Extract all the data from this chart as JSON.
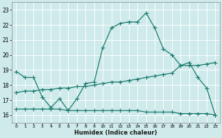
{
  "xlabel": "Humidex (Indice chaleur)",
  "background_color": "#ceeaea",
  "grid_color": "#ffffff",
  "line_color": "#1a7a6e",
  "xlim": [
    -0.5,
    23.5
  ],
  "ylim": [
    15.5,
    23.5
  ],
  "yticks": [
    16,
    17,
    18,
    19,
    20,
    21,
    22,
    23
  ],
  "xticks": [
    0,
    1,
    2,
    3,
    4,
    5,
    6,
    7,
    8,
    9,
    10,
    11,
    12,
    13,
    14,
    15,
    16,
    17,
    18,
    19,
    20,
    21,
    22,
    23
  ],
  "curve1_x": [
    0,
    1,
    2,
    3,
    4,
    5,
    6,
    7,
    8,
    9,
    10,
    11,
    12,
    13,
    14,
    15,
    16,
    17,
    18,
    19,
    20,
    21,
    22,
    23
  ],
  "curve1_y": [
    18.9,
    18.5,
    18.5,
    17.2,
    16.5,
    17.1,
    16.3,
    17.1,
    18.1,
    18.2,
    20.5,
    21.8,
    22.1,
    22.2,
    22.2,
    22.8,
    21.8,
    20.4,
    20.0,
    19.3,
    19.5,
    18.5,
    17.8,
    16.0
  ],
  "curve2_x": [
    0,
    1,
    2,
    3,
    4,
    5,
    6,
    7,
    8,
    9,
    10,
    11,
    12,
    13,
    14,
    15,
    16,
    17,
    18,
    19,
    20,
    21,
    22,
    23
  ],
  "curve2_y": [
    16.4,
    16.4,
    16.4,
    16.4,
    16.4,
    16.4,
    16.3,
    16.3,
    16.3,
    16.3,
    16.3,
    16.3,
    16.3,
    16.3,
    16.3,
    16.2,
    16.2,
    16.2,
    16.2,
    16.1,
    16.1,
    16.1,
    16.1,
    16.0
  ],
  "curve3_x": [
    0,
    1,
    2,
    3,
    4,
    5,
    6,
    7,
    8,
    9,
    10,
    11,
    12,
    13,
    14,
    15,
    16,
    17,
    18,
    19,
    20,
    21,
    22,
    23
  ],
  "curve3_y": [
    17.5,
    17.6,
    17.6,
    17.7,
    17.7,
    17.8,
    17.8,
    17.9,
    17.9,
    18.0,
    18.1,
    18.2,
    18.2,
    18.3,
    18.4,
    18.5,
    18.6,
    18.7,
    18.8,
    19.3,
    19.3,
    19.3,
    19.4,
    19.5
  ]
}
